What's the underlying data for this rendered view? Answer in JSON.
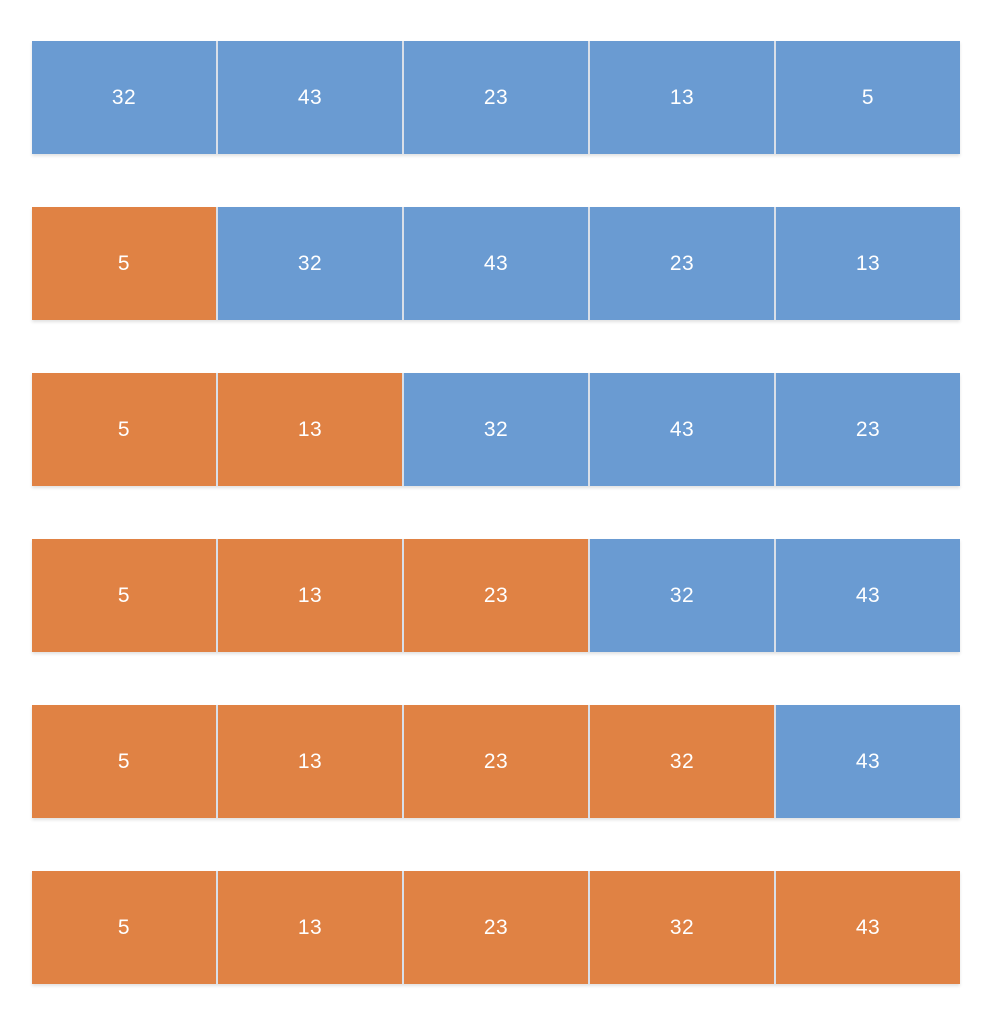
{
  "colors": {
    "unsorted": "#6a9bd2",
    "sorted": "#e08244"
  },
  "steps": [
    {
      "values": [
        "32",
        "43",
        "23",
        "13",
        "5"
      ],
      "sorted_count": 0
    },
    {
      "values": [
        "5",
        "32",
        "43",
        "23",
        "13"
      ],
      "sorted_count": 1
    },
    {
      "values": [
        "5",
        "13",
        "32",
        "43",
        "23"
      ],
      "sorted_count": 2
    },
    {
      "values": [
        "5",
        "13",
        "23",
        "32",
        "43"
      ],
      "sorted_count": 3
    },
    {
      "values": [
        "5",
        "13",
        "23",
        "32",
        "43"
      ],
      "sorted_count": 4
    },
    {
      "values": [
        "5",
        "13",
        "23",
        "32",
        "43"
      ],
      "sorted_count": 5
    }
  ]
}
